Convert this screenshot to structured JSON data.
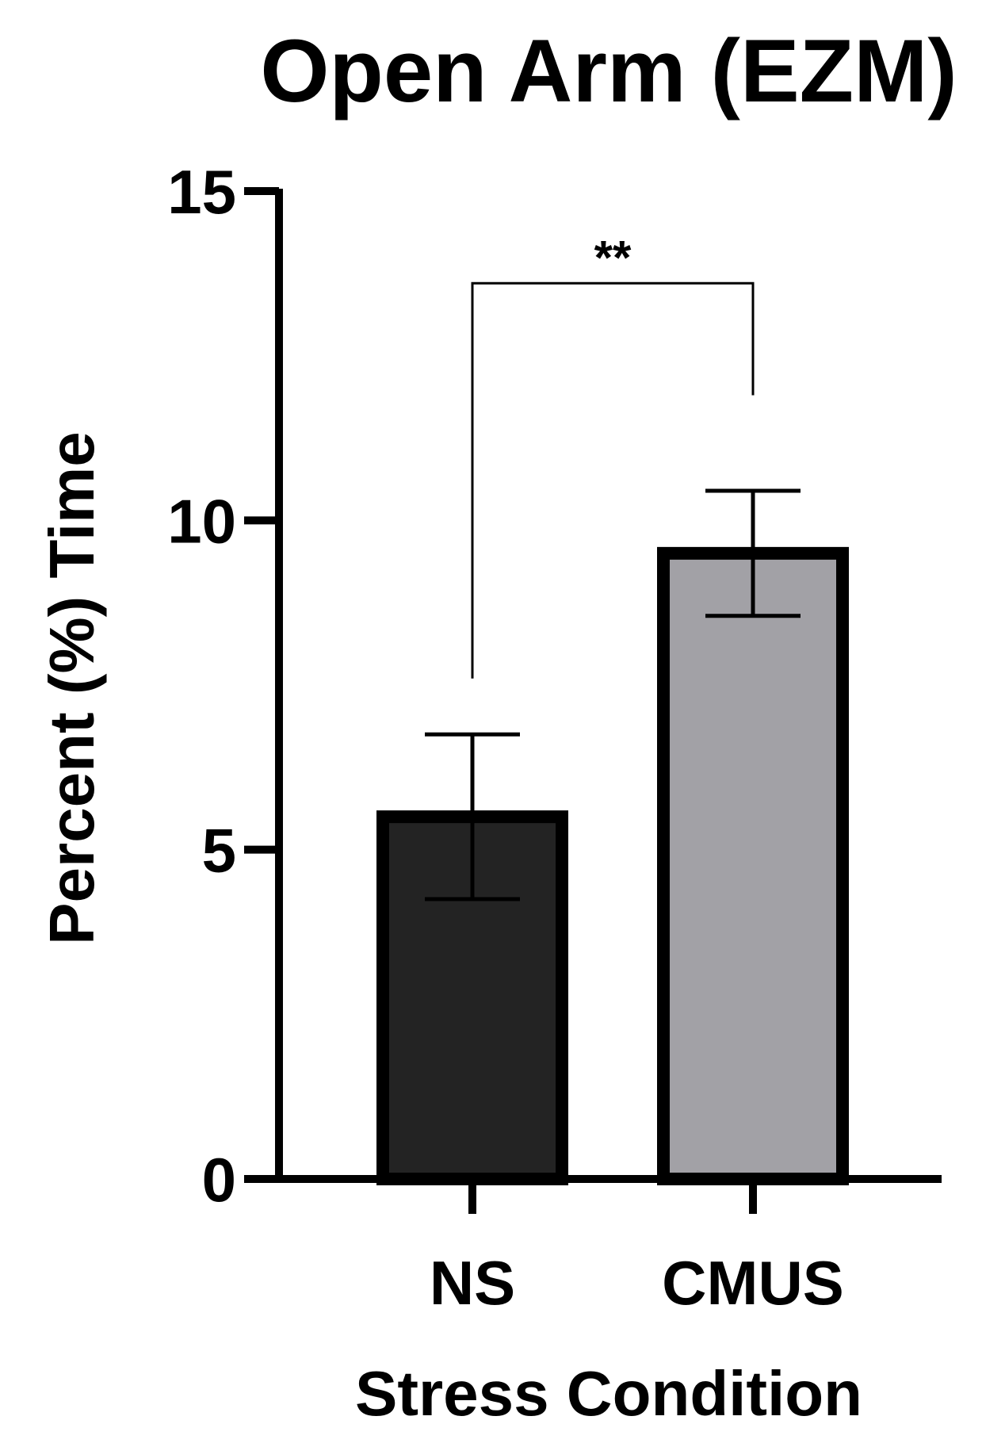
{
  "chart_data": {
    "type": "bar",
    "title": "Open Arm (EZM)",
    "xlabel": "Stress Condition",
    "ylabel": "Percent (%) Time",
    "ylim": [
      0,
      15
    ],
    "yticks": [
      0,
      5,
      10,
      15
    ],
    "ytick_labels": [
      "0",
      "5",
      "10",
      "15"
    ],
    "grid": false,
    "categories": [
      "NS",
      "CMUS"
    ],
    "values": [
      5.5,
      9.5
    ],
    "errors": [
      1.25,
      0.95
    ],
    "bar_colors": [
      "#232323",
      "#a2a1a6"
    ],
    "significance": [
      {
        "from": 0,
        "to": 1,
        "label": "**",
        "y": 13.6,
        "left_drop": 7.6,
        "right_drop": 11.9
      }
    ]
  }
}
